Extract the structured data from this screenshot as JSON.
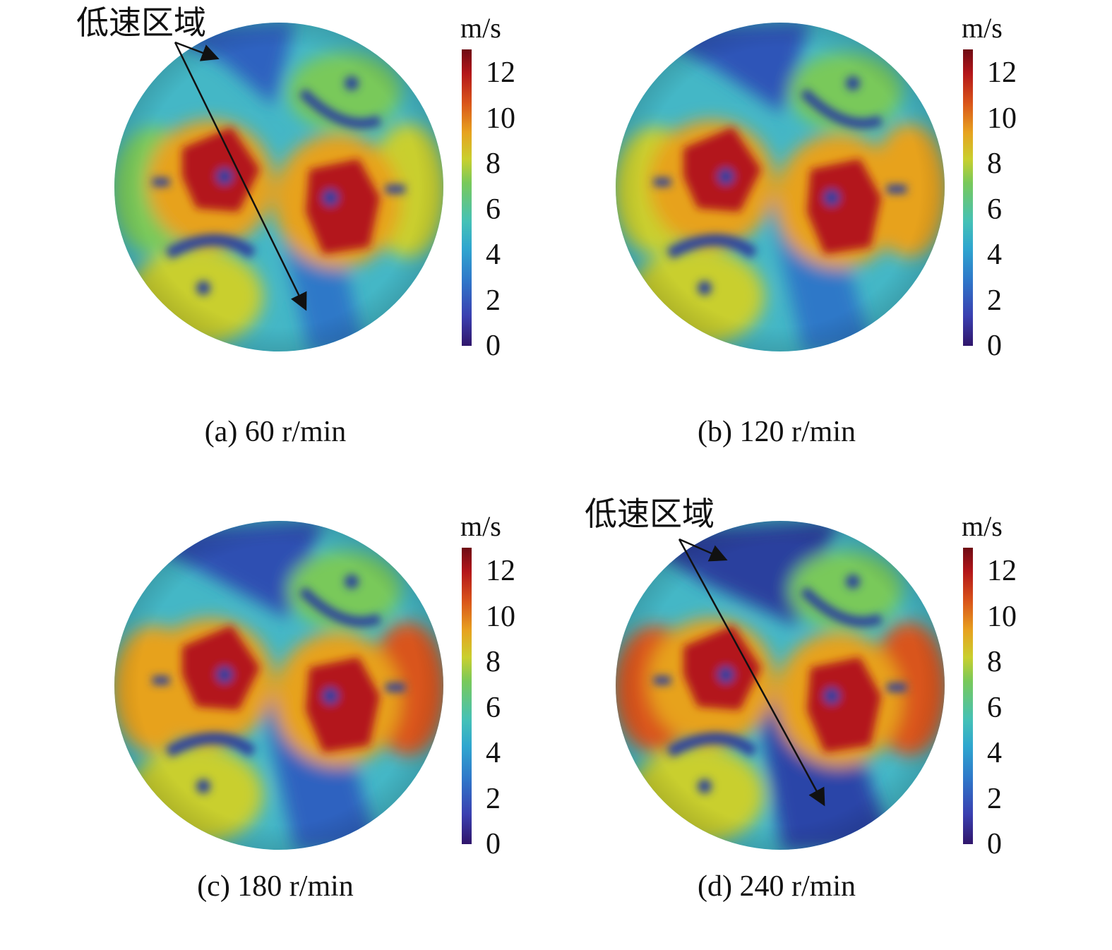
{
  "panels": [
    {
      "caption": "(a) 60 r/min",
      "unit": "m/s",
      "ticks": [
        "12",
        "10",
        "8",
        "6",
        "4",
        "2",
        "0"
      ],
      "annotation": "低速区域"
    },
    {
      "caption": "(b) 120 r/min",
      "unit": "m/s",
      "ticks": [
        "12",
        "10",
        "8",
        "6",
        "4",
        "2",
        "0"
      ]
    },
    {
      "caption": "(c) 180 r/min",
      "unit": "m/s",
      "ticks": [
        "12",
        "10",
        "8",
        "6",
        "4",
        "2",
        "0"
      ]
    },
    {
      "caption": "(d) 240 r/min",
      "unit": "m/s",
      "ticks": [
        "12",
        "10",
        "8",
        "6",
        "4",
        "2",
        "0"
      ],
      "annotation": "低速区域"
    }
  ],
  "colorbar": {
    "min": 0,
    "max": 13
  }
}
